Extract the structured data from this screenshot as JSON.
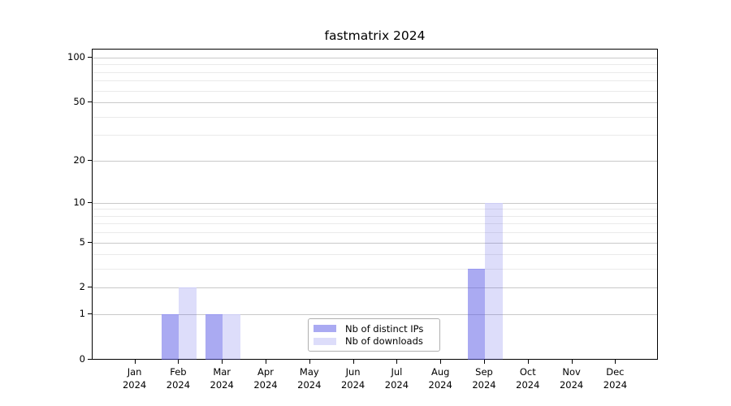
{
  "title": "fastmatrix 2024",
  "chart_data": {
    "type": "bar",
    "title": "fastmatrix 2024",
    "x_months": [
      "Jan",
      "Feb",
      "Mar",
      "Apr",
      "May",
      "Jun",
      "Jul",
      "Aug",
      "Sep",
      "Oct",
      "Nov",
      "Dec"
    ],
    "x_year": "2024",
    "categories": [
      "Jan 2024",
      "Feb 2024",
      "Mar 2024",
      "Apr 2024",
      "May 2024",
      "Jun 2024",
      "Jul 2024",
      "Aug 2024",
      "Sep 2024",
      "Oct 2024",
      "Nov 2024",
      "Dec 2024"
    ],
    "series": [
      {
        "name": "Nb of distinct IPs",
        "values": [
          0,
          1,
          1,
          0,
          0,
          0,
          0,
          0,
          3,
          0,
          0,
          0
        ],
        "color": "rgba(85,85,230,0.5)",
        "color_hex": "#aaaaf2",
        "edge_color": "#9898ef"
      },
      {
        "name": "Nb of downloads",
        "values": [
          0,
          2,
          1,
          0,
          0,
          0,
          0,
          0,
          10,
          0,
          0,
          0
        ],
        "color": "rgba(85,85,230,0.2)",
        "color_hex": "#ddddfa",
        "edge_color": "#cdcdf4"
      }
    ],
    "yscale": "log10(1+v)",
    "yticks": [
      0,
      1,
      2,
      5,
      10,
      20,
      50,
      100
    ],
    "yticks_minor": [
      3,
      4,
      6,
      7,
      8,
      9,
      30,
      40,
      60,
      70,
      80,
      90
    ],
    "ylim": [
      0,
      113
    ],
    "grid": "horizontal",
    "legend_position": "lower-center"
  },
  "colors": {
    "background": "#ffffff",
    "spine": "#000000",
    "grid_major": "#c9c9c9",
    "grid_minor": "#eaeaea",
    "tick_text": "#000000",
    "legend_border": "#b0b0b0"
  }
}
